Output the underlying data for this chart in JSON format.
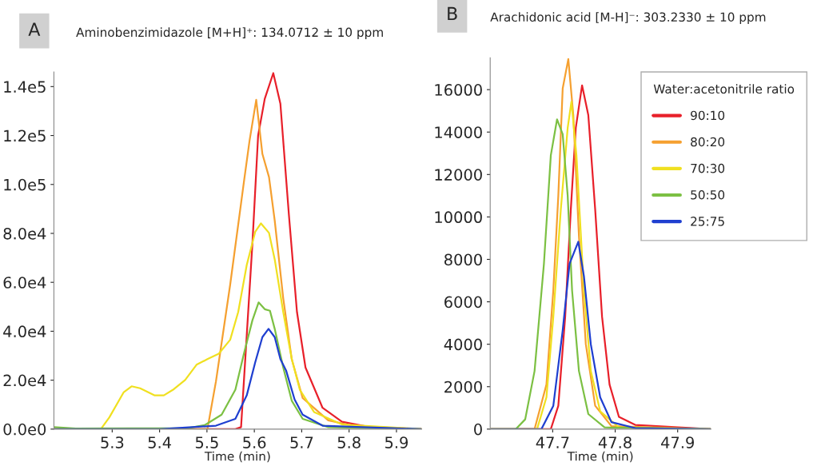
{
  "chart_data": [
    {
      "type": "line",
      "title": "Aminobenzimidazole [M+H]⁺: 134.0712 ± 10 ppm",
      "annotations": [
        "A"
      ],
      "xlabel": "Time (min)",
      "xlim": [
        5.177,
        5.953
      ],
      "xticks": [
        5.3,
        5.4,
        5.5,
        5.6,
        5.7,
        5.8,
        5.9
      ],
      "ylim": [
        0,
        146000
      ],
      "yticks": [
        {
          "value": 0,
          "label": "0.0e0"
        },
        {
          "value": 20000,
          "label": "2.0e4"
        },
        {
          "value": 40000,
          "label": "4.0e4"
        },
        {
          "value": 60000,
          "label": "6.0e4"
        },
        {
          "value": 80000,
          "label": "8.0e4"
        },
        {
          "value": 100000,
          "label": "1.0e5"
        },
        {
          "value": 120000,
          "label": "1.2e5"
        },
        {
          "value": 140000,
          "label": "1.4e5"
        }
      ],
      "grid": false,
      "legend": false,
      "series": [
        {
          "color": "#e8202a",
          "x": [
            5.177,
            5.56,
            5.572,
            5.596,
            5.608,
            5.622,
            5.64,
            5.655,
            5.673,
            5.69,
            5.708,
            5.744,
            5.785,
            5.844,
            5.953
          ],
          "values": [
            0,
            0,
            800,
            76000,
            120000,
            135000,
            145500,
            133000,
            87500,
            47900,
            25200,
            8700,
            3000,
            800,
            0
          ]
        },
        {
          "color": "#f5a030",
          "x": [
            5.177,
            5.501,
            5.519,
            5.549,
            5.578,
            5.59,
            5.604,
            5.617,
            5.631,
            5.643,
            5.661,
            5.679,
            5.702,
            5.756,
            5.815,
            5.953
          ],
          "values": [
            0,
            0,
            19500,
            59000,
            101000,
            118000,
            134600,
            112500,
            103000,
            85300,
            53500,
            28600,
            12700,
            3600,
            1100,
            0
          ]
        },
        {
          "color": "#f0e020",
          "x": [
            5.177,
            5.276,
            5.294,
            5.324,
            5.341,
            5.359,
            5.389,
            5.409,
            5.43,
            5.454,
            5.478,
            5.501,
            5.525,
            5.549,
            5.566,
            5.584,
            5.602,
            5.614,
            5.631,
            5.643,
            5.661,
            5.679,
            5.696,
            5.726,
            5.785,
            5.953
          ],
          "values": [
            0,
            0,
            4800,
            15000,
            17500,
            16700,
            13800,
            13800,
            16300,
            20100,
            26300,
            28600,
            30800,
            36500,
            47900,
            67100,
            80700,
            84100,
            80200,
            69400,
            47900,
            28600,
            16100,
            7000,
            1900,
            0
          ]
        },
        {
          "color": "#7cc043",
          "x": [
            5.177,
            5.223,
            5.46,
            5.495,
            5.531,
            5.56,
            5.578,
            5.596,
            5.609,
            5.622,
            5.633,
            5.643,
            5.661,
            5.679,
            5.702,
            5.756,
            5.953
          ],
          "values": [
            800,
            200,
            400,
            1600,
            5900,
            16100,
            30800,
            44500,
            51800,
            49000,
            48400,
            41000,
            25200,
            11600,
            4200,
            800,
            0
          ]
        },
        {
          "color": "#1f3fd0",
          "x": [
            5.177,
            5.401,
            5.519,
            5.56,
            5.584,
            5.602,
            5.617,
            5.63,
            5.643,
            5.655,
            5.667,
            5.685,
            5.702,
            5.744,
            5.953
          ],
          "values": [
            0,
            0,
            1400,
            4200,
            13800,
            27400,
            37600,
            41000,
            37600,
            28600,
            24000,
            12100,
            5900,
            1400,
            0
          ]
        }
      ]
    },
    {
      "type": "line",
      "title": "Arachidonic acid [M-H]⁻: 303.2330 ± 10 ppm",
      "annotations": [
        "B"
      ],
      "xlabel": "Time (min)",
      "xlim": [
        47.6,
        47.953
      ],
      "xticks": [
        47.7,
        47.8,
        47.9
      ],
      "ylim": [
        0,
        17500
      ],
      "yticks": [
        0,
        2000,
        4000,
        6000,
        8000,
        10000,
        12000,
        14000,
        16000
      ],
      "grid": false,
      "legend": "top right",
      "legend_title": "Water:acetonitrile ratio",
      "series": [
        {
          "name": "90:10",
          "color": "#e8202a",
          "x": [
            47.6,
            47.697,
            47.709,
            47.72,
            47.729,
            47.737,
            47.747,
            47.757,
            47.768,
            47.779,
            47.791,
            47.806,
            47.832,
            47.953
          ],
          "values": [
            0,
            0,
            1100,
            5300,
            10350,
            14200,
            16200,
            14800,
            10350,
            5300,
            2100,
            580,
            200,
            0
          ]
        },
        {
          "name": "80:20",
          "color": "#f5a030",
          "x": [
            47.6,
            47.671,
            47.69,
            47.701,
            47.709,
            47.716,
            47.725,
            47.733,
            47.742,
            47.753,
            47.768,
            47.794,
            47.953
          ],
          "values": [
            0,
            0,
            2100,
            6550,
            11000,
            16050,
            17440,
            14800,
            9100,
            4000,
            1100,
            140,
            0
          ]
        },
        {
          "name": "70:30",
          "color": "#f0e020",
          "x": [
            47.6,
            47.675,
            47.69,
            47.701,
            47.713,
            47.724,
            47.73,
            47.738,
            47.75,
            47.761,
            47.776,
            47.806,
            47.953
          ],
          "values": [
            0,
            0,
            1500,
            5300,
            10350,
            14200,
            15430,
            12900,
            6550,
            2740,
            840,
            80,
            0
          ]
        },
        {
          "name": "50:50",
          "color": "#7cc043",
          "x": [
            47.6,
            47.641,
            47.656,
            47.671,
            47.686,
            47.697,
            47.707,
            47.716,
            47.724,
            47.731,
            47.742,
            47.757,
            47.783,
            47.953
          ],
          "values": [
            0,
            0,
            460,
            2740,
            7800,
            12900,
            14600,
            13900,
            11000,
            6550,
            2740,
            710,
            80,
            0
          ]
        },
        {
          "name": "25:75",
          "color": "#1f3fd0",
          "x": [
            47.6,
            47.682,
            47.701,
            47.716,
            47.727,
            47.741,
            47.75,
            47.761,
            47.776,
            47.794,
            47.832,
            47.953
          ],
          "values": [
            0,
            0,
            1100,
            4650,
            7800,
            8830,
            7200,
            4000,
            1500,
            330,
            50,
            0
          ]
        }
      ]
    }
  ]
}
